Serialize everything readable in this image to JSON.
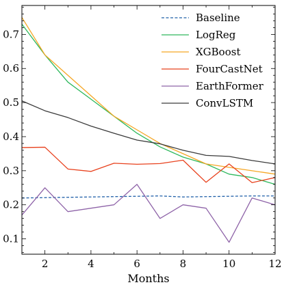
{
  "chart_data": {
    "type": "line",
    "xlabel": "Months",
    "ylabel": "",
    "xlim": [
      1,
      12
    ],
    "ylim": [
      0.055,
      0.785
    ],
    "xticks": [
      2,
      4,
      6,
      8,
      10,
      12
    ],
    "yticks": [
      0.1,
      0.2,
      0.3,
      0.4,
      0.5,
      0.6,
      0.7
    ],
    "ytick_labels": [
      "0.1",
      "0.2",
      "0.3",
      "0.4",
      "0.5",
      "0.6",
      "0.7"
    ],
    "grid": false,
    "legend_position": "top-right",
    "x": [
      1,
      2,
      3,
      4,
      5,
      6,
      7,
      8,
      9,
      10,
      11,
      12
    ],
    "series": [
      {
        "name": "Baseline",
        "color": "#1f5fa8",
        "dashed": true,
        "values": [
          0.22,
          0.221,
          0.222,
          0.223,
          0.224,
          0.225,
          0.226,
          0.223,
          0.224,
          0.225,
          0.226,
          0.226
        ]
      },
      {
        "name": "LogReg",
        "color": "#2db85c",
        "dashed": false,
        "values": [
          0.73,
          0.64,
          0.56,
          0.51,
          0.46,
          0.41,
          0.37,
          0.34,
          0.32,
          0.29,
          0.28,
          0.26
        ]
      },
      {
        "name": "XGBoost",
        "color": "#f5a623",
        "dashed": false,
        "values": [
          0.75,
          0.64,
          0.58,
          0.52,
          0.46,
          0.42,
          0.38,
          0.35,
          0.32,
          0.31,
          0.3,
          0.29
        ]
      },
      {
        "name": "FourCastNet",
        "color": "#e8401c",
        "dashed": false,
        "values": [
          0.368,
          0.369,
          0.305,
          0.298,
          0.322,
          0.319,
          0.321,
          0.331,
          0.266,
          0.32,
          0.265,
          0.28
        ]
      },
      {
        "name": "EarthFormer",
        "color": "#8e63a8",
        "dashed": false,
        "values": [
          0.17,
          0.25,
          0.18,
          0.19,
          0.2,
          0.26,
          0.16,
          0.2,
          0.19,
          0.09,
          0.22,
          0.2
        ]
      },
      {
        "name": "ConvLSTM",
        "color": "#3a3a3a",
        "dashed": false,
        "values": [
          0.505,
          0.476,
          0.456,
          0.431,
          0.41,
          0.39,
          0.379,
          0.36,
          0.345,
          0.342,
          0.33,
          0.32
        ]
      }
    ]
  }
}
